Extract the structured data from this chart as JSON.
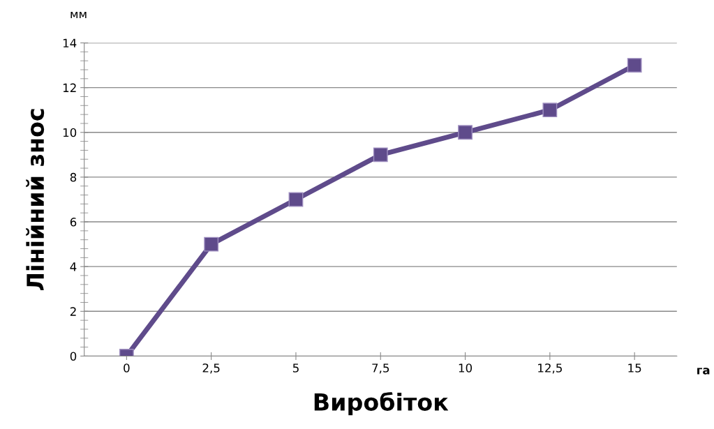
{
  "chart_data": {
    "type": "line",
    "xlabel": "Виробіток",
    "ylabel": "Лінійний знос",
    "categories": [
      "0",
      "2,5",
      "5",
      "7,5",
      "10",
      "12,5",
      "15"
    ],
    "series": [
      {
        "color": "#5f4b8b",
        "values": [
          0,
          5,
          7,
          9,
          10,
          11,
          13
        ]
      }
    ],
    "ylim": [
      0,
      14
    ],
    "yticks": [
      0,
      2,
      4,
      6,
      8,
      10,
      12,
      14
    ],
    "grid": "y",
    "marker": "square",
    "line_style": "solid",
    "legend": false,
    "annotations": [
      "мм",
      "га"
    ]
  }
}
